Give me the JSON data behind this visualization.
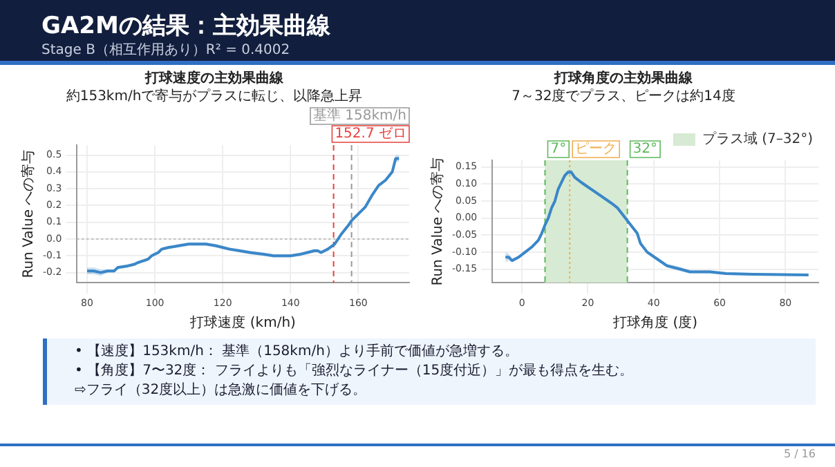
{
  "chart_data": [
    {
      "type": "other",
      "title": "GA2Mの結果：主効果曲線",
      "subtitle": "Stage B（相互作用あり）R² = 0.4002"
    },
    {
      "type": "line",
      "title": "打球速度の主効果曲線",
      "subtitle": "約153km/hで寄与がプラスに転じ、以降急上昇",
      "xlabel": "打球速度 (km/h)",
      "ylabel": "Run Value への寄与",
      "xlim": [
        77,
        175
      ],
      "xticks": [
        80,
        100,
        120,
        140,
        160
      ],
      "ylim": [
        -0.26,
        0.56
      ],
      "yticks": [
        {
          "value": -0.2,
          "label": "-0.2"
        },
        {
          "value": -0.1,
          "label": "-0.1"
        },
        {
          "value": 0,
          "label": "0.0"
        },
        {
          "value": 0.1,
          "label": "0.1"
        },
        {
          "value": 0.2,
          "label": "0.2"
        },
        {
          "value": 0.3,
          "label": "0.3"
        },
        {
          "value": 0.4,
          "label": "0.4"
        },
        {
          "value": 0.5,
          "label": "0.5"
        }
      ],
      "grid": true,
      "marker": "none",
      "series": [
        {
          "color": "#3a87c8",
          "x": [
            80,
            82,
            84,
            86,
            88,
            89,
            92,
            94,
            95,
            98,
            99,
            101,
            102,
            104,
            107,
            110,
            115,
            118,
            120,
            122,
            125,
            128,
            132,
            135,
            140,
            143,
            145,
            147,
            148,
            149,
            151,
            153,
            155,
            157,
            158,
            160,
            162,
            164,
            166,
            168,
            170,
            171,
            172
          ],
          "values": [
            -0.19,
            -0.19,
            -0.2,
            -0.19,
            -0.19,
            -0.17,
            -0.16,
            -0.15,
            -0.14,
            -0.12,
            -0.1,
            -0.08,
            -0.06,
            -0.05,
            -0.04,
            -0.03,
            -0.03,
            -0.04,
            -0.05,
            -0.06,
            -0.07,
            -0.08,
            -0.09,
            -0.1,
            -0.1,
            -0.09,
            -0.08,
            -0.07,
            -0.07,
            -0.08,
            -0.06,
            -0.03,
            0.03,
            0.08,
            0.11,
            0.15,
            0.19,
            0.26,
            0.32,
            0.35,
            0.4,
            0.48,
            0.48
          ],
          "lower": [
            -0.21,
            -0.21,
            -0.22,
            -0.2,
            -0.2,
            -0.18,
            -0.17,
            -0.16,
            -0.15,
            -0.13,
            -0.11,
            -0.09,
            -0.07,
            -0.06,
            -0.05,
            -0.04,
            -0.04,
            -0.05,
            -0.06,
            -0.07,
            -0.08,
            -0.09,
            -0.1,
            -0.11,
            -0.11,
            -0.1,
            -0.09,
            -0.08,
            -0.08,
            -0.09,
            -0.07,
            -0.04,
            0.02,
            0.07,
            0.1,
            0.14,
            0.18,
            0.25,
            0.31,
            0.34,
            0.39,
            0.46,
            0.46
          ],
          "upper": [
            -0.17,
            -0.17,
            -0.18,
            -0.18,
            -0.18,
            -0.16,
            -0.15,
            -0.14,
            -0.13,
            -0.11,
            -0.09,
            -0.07,
            -0.05,
            -0.04,
            -0.03,
            -0.02,
            -0.02,
            -0.03,
            -0.04,
            -0.05,
            -0.06,
            -0.07,
            -0.08,
            -0.09,
            -0.09,
            -0.08,
            -0.07,
            -0.06,
            -0.06,
            -0.07,
            -0.05,
            -0.02,
            0.04,
            0.09,
            0.12,
            0.16,
            0.2,
            0.27,
            0.33,
            0.36,
            0.41,
            0.5,
            0.5
          ]
        }
      ],
      "ref_lines": [
        {
          "axis": "y",
          "value": 0,
          "color": "#bbbbbb",
          "line_style": "dotted"
        },
        {
          "axis": "x",
          "value": 152.7,
          "label": "152.7 ゼロ",
          "color": "#e8413c",
          "line_style": "dashed"
        },
        {
          "axis": "x",
          "value": 158,
          "label": "基準 158km/h",
          "color": "#999999",
          "line_style": "dashed"
        }
      ]
    },
    {
      "type": "line",
      "title": "打球角度の主効果曲線",
      "subtitle": "7～32度でプラス、ピークは約14度",
      "xlabel": "打球角度 (度)",
      "ylabel": "Run Value への寄与",
      "xlim": [
        -9,
        90
      ],
      "xticks": [
        0,
        20,
        40,
        60,
        80
      ],
      "ylim": [
        -0.19,
        0.17
      ],
      "yticks": [
        {
          "value": -0.15,
          "label": "-0.15"
        },
        {
          "value": -0.1,
          "label": "-0.10"
        },
        {
          "value": -0.05,
          "label": "-0.05"
        },
        {
          "value": 0,
          "label": "0.00"
        },
        {
          "value": 0.05,
          "label": "0.05"
        },
        {
          "value": 0.1,
          "label": "0.10"
        },
        {
          "value": 0.15,
          "label": "0.15"
        }
      ],
      "grid": true,
      "marker": "none",
      "legend": "top right",
      "series": [
        {
          "color": "#3a87c8",
          "x": [
            -5,
            -4,
            -3,
            -1,
            1,
            3,
            5,
            6,
            7,
            8,
            9,
            10,
            11,
            12,
            13,
            14,
            15,
            16,
            18,
            21,
            24,
            27,
            29,
            31,
            33,
            35,
            36,
            38,
            41,
            44,
            48,
            51,
            57,
            62,
            70,
            87
          ],
          "values": [
            -0.115,
            -0.115,
            -0.125,
            -0.115,
            -0.1,
            -0.085,
            -0.065,
            -0.045,
            -0.02,
            0,
            0.03,
            0.05,
            0.085,
            0.105,
            0.125,
            0.135,
            0.135,
            0.12,
            0.105,
            0.085,
            0.065,
            0.045,
            0.03,
            0.005,
            -0.02,
            -0.045,
            -0.075,
            -0.1,
            -0.12,
            -0.14,
            -0.15,
            -0.158,
            -0.158,
            -0.163,
            -0.165,
            -0.167
          ],
          "lower": [
            -0.13,
            -0.125,
            -0.13,
            -0.12,
            -0.105,
            -0.09,
            -0.07,
            -0.05,
            -0.025,
            -0.005,
            0.025,
            0.045,
            0.08,
            0.1,
            0.12,
            0.128,
            0.128,
            0.115,
            0.1,
            0.08,
            0.06,
            0.04,
            0.025,
            0,
            -0.025,
            -0.05,
            -0.08,
            -0.105,
            -0.125,
            -0.146,
            -0.156,
            -0.163,
            -0.163,
            -0.167,
            -0.169,
            -0.17
          ],
          "upper": [
            -0.1,
            -0.105,
            -0.12,
            -0.11,
            -0.095,
            -0.08,
            -0.06,
            -0.04,
            -0.015,
            0.005,
            0.035,
            0.055,
            0.09,
            0.11,
            0.13,
            0.142,
            0.142,
            0.125,
            0.11,
            0.09,
            0.07,
            0.05,
            0.035,
            0.01,
            -0.015,
            -0.04,
            -0.07,
            -0.095,
            -0.115,
            -0.134,
            -0.144,
            -0.153,
            -0.153,
            -0.159,
            -0.161,
            -0.164
          ]
        }
      ],
      "bands": [
        {
          "axis": "x",
          "from": 7,
          "to": 32,
          "label": "プラス域 (7–32°)",
          "color": "#d7ead3"
        }
      ],
      "ref_lines": [
        {
          "axis": "x",
          "value": 7,
          "label": "7°",
          "color": "#5cb85c",
          "line_style": "dashed"
        },
        {
          "axis": "x",
          "value": 32,
          "label": "32°",
          "color": "#5cb85c",
          "line_style": "dashed"
        },
        {
          "axis": "x",
          "value": 14.5,
          "label": "ピーク",
          "color": "#f0ad4e",
          "line_style": "dotted"
        }
      ]
    },
    {
      "type": "other",
      "annotations": [
        "• 【速度】153km/h： 基準（158km/h）より手前で価値が急増する。",
        "• 【角度】7〜32度： フライよりも「強烈なライナー（15度付近）」が最も得点を生む。",
        "⇨フライ（32度以上）は急激に価値を下げる。",
        "5 / 16"
      ]
    }
  ]
}
